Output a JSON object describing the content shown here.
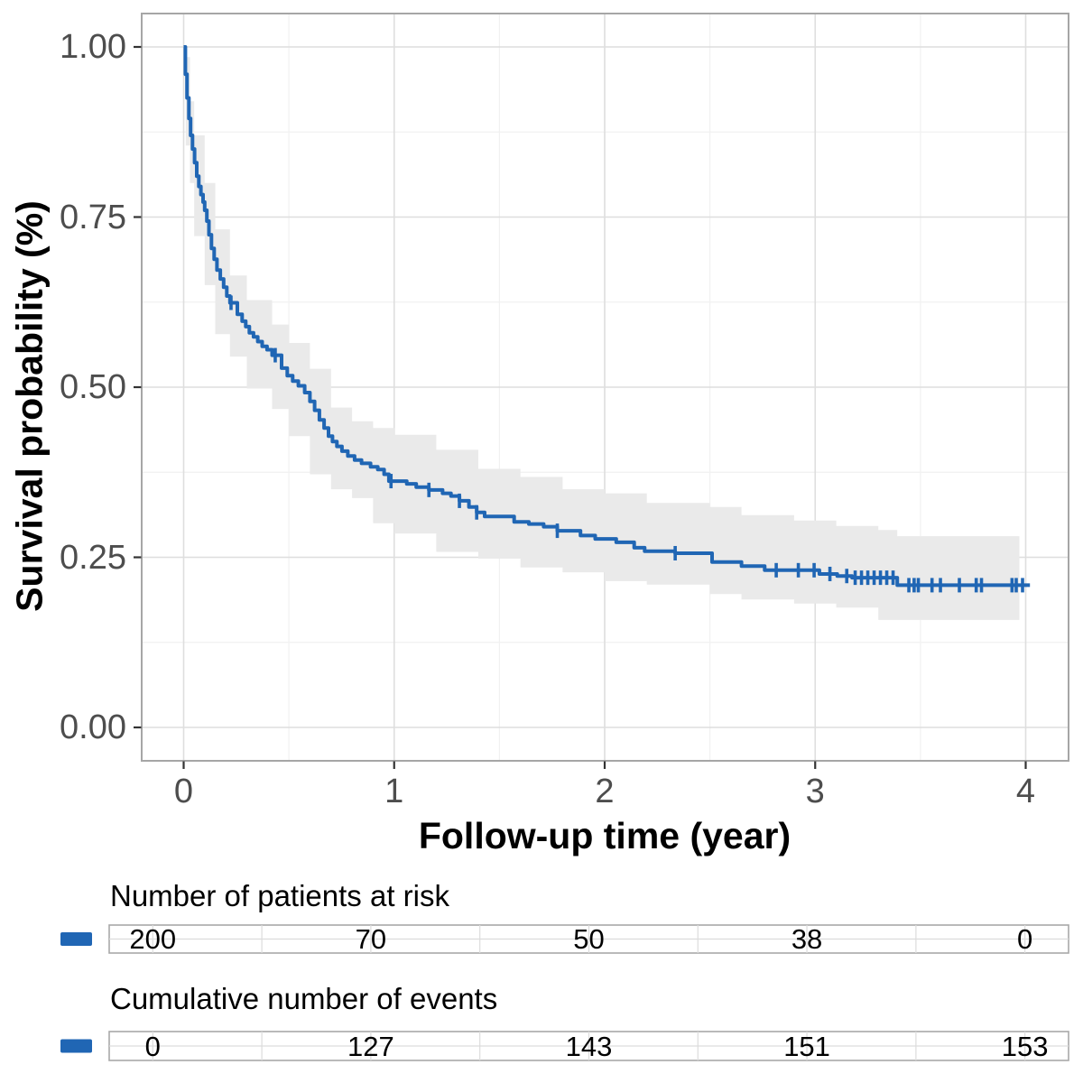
{
  "chart_data": {
    "type": "line",
    "subtype": "kaplan_meier_survival_curve",
    "title": "",
    "xlabel": "Follow-up time (year)",
    "ylabel": "Survival probability (%)",
    "xlim": [
      -0.2,
      4.2
    ],
    "ylim": [
      -0.05,
      1.05
    ],
    "grid": true,
    "legend_position": "none",
    "x_tick_values": [
      0,
      1,
      2,
      3,
      4
    ],
    "x_tick_labels": [
      "0",
      "1",
      "2",
      "3",
      "4"
    ],
    "x_minor_gridlines": [
      0.5,
      1.5,
      2.5,
      3.5
    ],
    "y_tick_values": [
      1.0,
      0.75,
      0.5,
      0.25,
      0.0
    ],
    "y_tick_labels": [
      "1.00",
      "0.75",
      "0.50",
      "0.25",
      "0.00"
    ],
    "y_minor_gridlines": [
      0.875,
      0.625,
      0.375,
      0.125
    ],
    "colors": {
      "line": "#2066b4",
      "censor": "#2066b4",
      "strata_marker": "#2066b4",
      "confidence_band": "#eaeaea",
      "grid_major": "#dedede",
      "grid_minor": "#f1f1f1",
      "panel_border": "#a6a6a6",
      "axis_tick": "#333333",
      "tick_text": "#4d4d4d",
      "title_text": "#000000",
      "table_border": "#a8a8a8",
      "table_grid": "#dcdcdc"
    },
    "survival_steps": [
      [
        0.0,
        1.0
      ],
      [
        0.008,
        0.96
      ],
      [
        0.016,
        0.925
      ],
      [
        0.025,
        0.895
      ],
      [
        0.033,
        0.87
      ],
      [
        0.042,
        0.85
      ],
      [
        0.052,
        0.83
      ],
      [
        0.062,
        0.81
      ],
      [
        0.072,
        0.795
      ],
      [
        0.082,
        0.783
      ],
      [
        0.092,
        0.772
      ],
      [
        0.1,
        0.76
      ],
      [
        0.11,
        0.744
      ],
      [
        0.12,
        0.724
      ],
      [
        0.132,
        0.704
      ],
      [
        0.145,
        0.688
      ],
      [
        0.158,
        0.672
      ],
      [
        0.174,
        0.659
      ],
      [
        0.19,
        0.647
      ],
      [
        0.205,
        0.634
      ],
      [
        0.22,
        0.624
      ],
      [
        0.255,
        0.607
      ],
      [
        0.278,
        0.597
      ],
      [
        0.295,
        0.589
      ],
      [
        0.312,
        0.58
      ],
      [
        0.332,
        0.574
      ],
      [
        0.352,
        0.567
      ],
      [
        0.373,
        0.56
      ],
      [
        0.396,
        0.555
      ],
      [
        0.42,
        0.547
      ],
      [
        0.465,
        0.528
      ],
      [
        0.492,
        0.517
      ],
      [
        0.518,
        0.509
      ],
      [
        0.545,
        0.502
      ],
      [
        0.575,
        0.492
      ],
      [
        0.6,
        0.479
      ],
      [
        0.622,
        0.466
      ],
      [
        0.645,
        0.452
      ],
      [
        0.667,
        0.44
      ],
      [
        0.688,
        0.428
      ],
      [
        0.707,
        0.42
      ],
      [
        0.728,
        0.413
      ],
      [
        0.752,
        0.406
      ],
      [
        0.78,
        0.399
      ],
      [
        0.812,
        0.393
      ],
      [
        0.845,
        0.388
      ],
      [
        0.888,
        0.383
      ],
      [
        0.922,
        0.379
      ],
      [
        0.952,
        0.372
      ],
      [
        0.975,
        0.362
      ],
      [
        1.06,
        0.358
      ],
      [
        1.105,
        0.353
      ],
      [
        1.165,
        0.349
      ],
      [
        1.23,
        0.344
      ],
      [
        1.27,
        0.34
      ],
      [
        1.31,
        0.333
      ],
      [
        1.355,
        0.324
      ],
      [
        1.392,
        0.316
      ],
      [
        1.43,
        0.31
      ],
      [
        1.57,
        0.302
      ],
      [
        1.64,
        0.299
      ],
      [
        1.71,
        0.295
      ],
      [
        1.775,
        0.289
      ],
      [
        1.885,
        0.282
      ],
      [
        1.955,
        0.277
      ],
      [
        2.055,
        0.272
      ],
      [
        2.14,
        0.264
      ],
      [
        2.19,
        0.259
      ],
      [
        2.335,
        0.256
      ],
      [
        2.51,
        0.243
      ],
      [
        2.65,
        0.237
      ],
      [
        2.76,
        0.231
      ],
      [
        3.02,
        0.2255
      ],
      [
        3.105,
        0.2225
      ],
      [
        3.175,
        0.22
      ],
      [
        3.39,
        0.209
      ],
      [
        4.02,
        0.209
      ]
    ],
    "censor_marks": [
      [
        0.225,
        0.624
      ],
      [
        0.435,
        0.547
      ],
      [
        0.985,
        0.362
      ],
      [
        1.165,
        0.349
      ],
      [
        1.31,
        0.333
      ],
      [
        1.392,
        0.316
      ],
      [
        1.775,
        0.289
      ],
      [
        2.335,
        0.256
      ],
      [
        2.815,
        0.231
      ],
      [
        2.92,
        0.231
      ],
      [
        2.995,
        0.231
      ],
      [
        3.07,
        0.2255
      ],
      [
        3.15,
        0.2225
      ],
      [
        3.19,
        0.22
      ],
      [
        3.22,
        0.22
      ],
      [
        3.25,
        0.22
      ],
      [
        3.28,
        0.22
      ],
      [
        3.31,
        0.22
      ],
      [
        3.34,
        0.22
      ],
      [
        3.37,
        0.22
      ],
      [
        3.445,
        0.209
      ],
      [
        3.47,
        0.209
      ],
      [
        3.49,
        0.209
      ],
      [
        3.555,
        0.209
      ],
      [
        3.595,
        0.209
      ],
      [
        3.685,
        0.209
      ],
      [
        3.765,
        0.209
      ],
      [
        3.79,
        0.209
      ],
      [
        3.935,
        0.209
      ],
      [
        3.955,
        0.209
      ],
      [
        3.985,
        0.209
      ]
    ],
    "confidence_band": [
      [
        0.01,
        0.985,
        0.935
      ],
      [
        0.03,
        0.92,
        0.855
      ],
      [
        0.05,
        0.87,
        0.8
      ],
      [
        0.1,
        0.8,
        0.722
      ],
      [
        0.15,
        0.732,
        0.65
      ],
      [
        0.22,
        0.664,
        0.578
      ],
      [
        0.3,
        0.628,
        0.545
      ],
      [
        0.42,
        0.592,
        0.498
      ],
      [
        0.5,
        0.565,
        0.468
      ],
      [
        0.6,
        0.527,
        0.428
      ],
      [
        0.7,
        0.47,
        0.372
      ],
      [
        0.8,
        0.45,
        0.35
      ],
      [
        0.9,
        0.44,
        0.337
      ],
      [
        1.0,
        0.43,
        0.3
      ],
      [
        1.2,
        0.408,
        0.285
      ],
      [
        1.4,
        0.38,
        0.258
      ],
      [
        1.6,
        0.368,
        0.248
      ],
      [
        1.8,
        0.35,
        0.235
      ],
      [
        2.0,
        0.344,
        0.228
      ],
      [
        2.2,
        0.33,
        0.215
      ],
      [
        2.5,
        0.324,
        0.21
      ],
      [
        2.65,
        0.312,
        0.196
      ],
      [
        2.9,
        0.304,
        0.188
      ],
      [
        3.1,
        0.296,
        0.182
      ],
      [
        3.3,
        0.29,
        0.176
      ],
      [
        3.39,
        0.281,
        0.158
      ],
      [
        3.97,
        0.281,
        0.158
      ]
    ],
    "risk_table": {
      "title": "Number of patients at risk",
      "times": [
        0,
        1,
        2,
        3,
        4
      ],
      "values": [
        "200",
        "70",
        "50",
        "38",
        "0"
      ]
    },
    "events_table": {
      "title": "Cumulative number of events",
      "times": [
        0,
        1,
        2,
        3,
        4
      ],
      "values": [
        "0",
        "127",
        "143",
        "151",
        "153"
      ]
    }
  }
}
